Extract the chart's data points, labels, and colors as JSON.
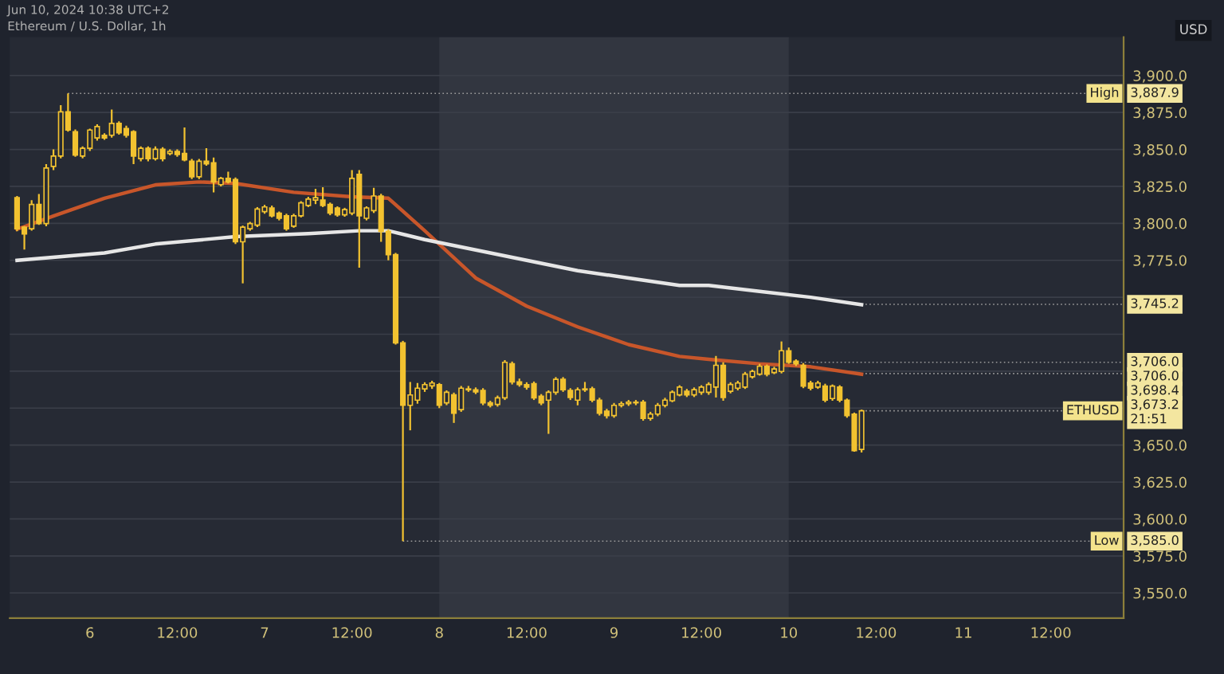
{
  "chart_data": {
    "type": "candlestick",
    "title": "Ethereum / U.S. Dollar, 1h",
    "ylabel": "USD",
    "color": "#f2c230",
    "x": [
      "2024-06-05T14:00",
      "2024-06-05T15:00",
      "2024-06-05T16:00",
      "2024-06-05T17:00",
      "2024-06-05T18:00",
      "2024-06-05T19:00",
      "2024-06-05T20:00",
      "2024-06-05T21:00",
      "2024-06-05T22:00",
      "2024-06-05T23:00",
      "2024-06-06T00:00",
      "2024-06-06T01:00",
      "2024-06-06T02:00",
      "2024-06-06T03:00",
      "2024-06-06T04:00",
      "2024-06-06T05:00",
      "2024-06-06T06:00",
      "2024-06-06T07:00",
      "2024-06-06T08:00",
      "2024-06-06T09:00",
      "2024-06-06T10:00",
      "2024-06-06T11:00",
      "2024-06-06T12:00",
      "2024-06-06T13:00",
      "2024-06-06T14:00",
      "2024-06-06T15:00",
      "2024-06-06T16:00",
      "2024-06-06T17:00",
      "2024-06-06T18:00",
      "2024-06-06T19:00",
      "2024-06-06T20:00",
      "2024-06-06T21:00",
      "2024-06-06T22:00",
      "2024-06-06T23:00",
      "2024-06-07T00:00",
      "2024-06-07T01:00",
      "2024-06-07T02:00",
      "2024-06-07T03:00",
      "2024-06-07T04:00",
      "2024-06-07T05:00",
      "2024-06-07T06:00",
      "2024-06-07T07:00",
      "2024-06-07T08:00",
      "2024-06-07T09:00",
      "2024-06-07T10:00",
      "2024-06-07T11:00",
      "2024-06-07T12:00",
      "2024-06-07T13:00",
      "2024-06-07T14:00",
      "2024-06-07T15:00",
      "2024-06-07T16:00",
      "2024-06-07T17:00",
      "2024-06-07T18:00",
      "2024-06-07T19:00",
      "2024-06-07T20:00",
      "2024-06-07T21:00",
      "2024-06-07T22:00",
      "2024-06-07T23:00",
      "2024-06-08T00:00",
      "2024-06-08T01:00",
      "2024-06-08T02:00",
      "2024-06-08T03:00",
      "2024-06-08T04:00",
      "2024-06-08T05:00",
      "2024-06-08T06:00",
      "2024-06-08T07:00",
      "2024-06-08T08:00",
      "2024-06-08T09:00",
      "2024-06-08T10:00",
      "2024-06-08T11:00",
      "2024-06-08T12:00",
      "2024-06-08T13:00",
      "2024-06-08T14:00",
      "2024-06-08T15:00",
      "2024-06-08T16:00",
      "2024-06-08T17:00",
      "2024-06-08T18:00",
      "2024-06-08T19:00",
      "2024-06-08T20:00",
      "2024-06-08T21:00",
      "2024-06-08T22:00",
      "2024-06-08T23:00",
      "2024-06-09T00:00",
      "2024-06-09T01:00",
      "2024-06-09T02:00",
      "2024-06-09T03:00",
      "2024-06-09T04:00",
      "2024-06-09T05:00",
      "2024-06-09T06:00",
      "2024-06-09T07:00",
      "2024-06-09T08:00",
      "2024-06-09T09:00",
      "2024-06-09T10:00",
      "2024-06-09T11:00",
      "2024-06-09T12:00",
      "2024-06-09T13:00",
      "2024-06-09T14:00",
      "2024-06-09T15:00",
      "2024-06-09T16:00",
      "2024-06-09T17:00",
      "2024-06-09T18:00",
      "2024-06-09T19:00",
      "2024-06-09T20:00",
      "2024-06-09T21:00",
      "2024-06-09T22:00",
      "2024-06-09T23:00",
      "2024-06-10T00:00",
      "2024-06-10T01:00",
      "2024-06-10T02:00",
      "2024-06-10T03:00",
      "2024-06-10T04:00",
      "2024-06-10T05:00",
      "2024-06-10T06:00",
      "2024-06-10T07:00",
      "2024-06-10T08:00",
      "2024-06-10T09:00",
      "2024-06-10T10:00"
    ],
    "ohlc": [
      [
        3817.4,
        3818.5,
        3794.6,
        3796.3
      ],
      [
        3797.4,
        3798.1,
        3782.3,
        3792.8
      ],
      [
        3796.3,
        3815.7,
        3795.0,
        3812.8
      ],
      [
        3812.8,
        3819.9,
        3799.0,
        3799.8
      ],
      [
        3799.8,
        3840.0,
        3798.0,
        3837.4
      ],
      [
        3838.5,
        3850.0,
        3836.0,
        3845.5
      ],
      [
        3845.5,
        3880.0,
        3844.0,
        3875.4
      ],
      [
        3875.4,
        3887.9,
        3862.0,
        3863.1
      ],
      [
        3862.0,
        3863.5,
        3845.0,
        3846.2
      ],
      [
        3845.5,
        3852.0,
        3844.0,
        3850.8
      ],
      [
        3850.8,
        3864.0,
        3849.0,
        3863.1
      ],
      [
        3857.8,
        3867.0,
        3856.0,
        3865.5
      ],
      [
        3859.6,
        3861.0,
        3856.5,
        3857.8
      ],
      [
        3859.6,
        3877.0,
        3858.0,
        3867.6
      ],
      [
        3867.6,
        3869.0,
        3860.0,
        3861.3
      ],
      [
        3864.1,
        3866.0,
        3858.0,
        3859.6
      ],
      [
        3862.0,
        3863.0,
        3840.0,
        3845.5
      ],
      [
        3843.8,
        3852.0,
        3842.0,
        3850.8
      ],
      [
        3850.8,
        3852.0,
        3842.0,
        3843.8
      ],
      [
        3843.8,
        3852.0,
        3842.5,
        3850.1
      ],
      [
        3850.1,
        3851.5,
        3842.0,
        3843.8
      ],
      [
        3847.3,
        3850.0,
        3846.0,
        3848.7
      ],
      [
        3848.7,
        3850.0,
        3845.0,
        3846.6
      ],
      [
        3847.3,
        3864.8,
        3842.0,
        3843.0
      ],
      [
        3842.0,
        3843.5,
        3830.0,
        3831.5
      ],
      [
        3831.5,
        3843.5,
        3830.0,
        3842.0
      ],
      [
        3842.0,
        3850.8,
        3839.0,
        3840.2
      ],
      [
        3840.9,
        3844.5,
        3820.9,
        3828.0
      ],
      [
        3826.2,
        3831.5,
        3825.0,
        3830.4
      ],
      [
        3830.4,
        3835.0,
        3827.0,
        3828.0
      ],
      [
        3829.7,
        3831.0,
        3786.0,
        3787.5
      ],
      [
        3787.5,
        3798.5,
        3759.4,
        3797.4
      ],
      [
        3796.3,
        3801.0,
        3795.0,
        3799.8
      ],
      [
        3798.8,
        3811.0,
        3797.5,
        3809.7
      ],
      [
        3807.9,
        3812.5,
        3806.5,
        3811.1
      ],
      [
        3810.4,
        3812.0,
        3804.0,
        3805.1
      ],
      [
        3806.9,
        3808.0,
        3802.0,
        3803.4
      ],
      [
        3805.1,
        3806.5,
        3795.0,
        3796.3
      ],
      [
        3798.1,
        3806.5,
        3797.0,
        3805.1
      ],
      [
        3805.1,
        3815.0,
        3804.0,
        3813.9
      ],
      [
        3812.1,
        3818.0,
        3811.0,
        3816.4
      ],
      [
        3815.7,
        3823.4,
        3813.0,
        3817.4
      ],
      [
        3815.7,
        3824.4,
        3811.0,
        3812.1
      ],
      [
        3812.8,
        3814.0,
        3805.5,
        3806.9
      ],
      [
        3810.4,
        3811.5,
        3804.5,
        3805.8
      ],
      [
        3805.8,
        3810.5,
        3804.5,
        3809.3
      ],
      [
        3806.9,
        3836.0,
        3805.5,
        3830.4
      ],
      [
        3833.2,
        3836.0,
        3770.0,
        3805.1
      ],
      [
        3803.4,
        3811.5,
        3802.0,
        3810.4
      ],
      [
        3808.6,
        3824.0,
        3807.0,
        3818.5
      ],
      [
        3818.5,
        3820.0,
        3787.5,
        3794.6
      ],
      [
        3794.6,
        3796.0,
        3775.0,
        3778.8
      ],
      [
        3778.8,
        3780.0,
        3718.0,
        3719.1
      ],
      [
        3719.1,
        3720.5,
        3585.0,
        3676.9
      ],
      [
        3676.9,
        3692.7,
        3660.0,
        3683.9
      ],
      [
        3680.4,
        3692.0,
        3678.0,
        3688.5
      ],
      [
        3688.0,
        3692.5,
        3686.0,
        3690.9
      ],
      [
        3690.0,
        3693.5,
        3688.0,
        3692.0
      ],
      [
        3690.9,
        3692.0,
        3675.0,
        3676.9
      ],
      [
        3678.6,
        3687.0,
        3677.0,
        3685.7
      ],
      [
        3684.0,
        3685.5,
        3665.0,
        3671.6
      ],
      [
        3674.0,
        3690.0,
        3672.5,
        3688.5
      ],
      [
        3688.0,
        3690.0,
        3686.0,
        3687.4
      ],
      [
        3687.4,
        3689.0,
        3684.5,
        3686.0
      ],
      [
        3687.0,
        3688.5,
        3677.0,
        3678.6
      ],
      [
        3678.6,
        3680.0,
        3675.5,
        3677.0
      ],
      [
        3677.5,
        3683.5,
        3676.0,
        3682.0
      ],
      [
        3682.0,
        3707.5,
        3680.5,
        3706.0
      ],
      [
        3705.0,
        3706.5,
        3691.0,
        3692.7
      ],
      [
        3692.7,
        3695.0,
        3689.5,
        3690.9
      ],
      [
        3690.9,
        3692.5,
        3687.5,
        3689.2
      ],
      [
        3691.5,
        3693.0,
        3680.5,
        3682.0
      ],
      [
        3683.0,
        3684.5,
        3677.0,
        3678.6
      ],
      [
        3680.4,
        3687.0,
        3657.6,
        3685.7
      ],
      [
        3685.7,
        3696.0,
        3684.0,
        3694.5
      ],
      [
        3694.5,
        3696.0,
        3686.0,
        3687.4
      ],
      [
        3687.0,
        3688.5,
        3680.5,
        3682.2
      ],
      [
        3680.4,
        3689.0,
        3676.9,
        3687.4
      ],
      [
        3687.4,
        3692.7,
        3686.0,
        3688.0
      ],
      [
        3688.0,
        3689.5,
        3679.0,
        3680.4
      ],
      [
        3680.4,
        3682.0,
        3670.0,
        3671.6
      ],
      [
        3673.0,
        3674.5,
        3668.0,
        3669.9
      ],
      [
        3670.0,
        3678.5,
        3668.5,
        3676.9
      ],
      [
        3676.9,
        3679.5,
        3675.5,
        3678.0
      ],
      [
        3678.0,
        3680.5,
        3676.5,
        3679.0
      ],
      [
        3679.0,
        3680.5,
        3677.0,
        3678.6
      ],
      [
        3679.0,
        3680.5,
        3666.5,
        3668.1
      ],
      [
        3668.1,
        3672.5,
        3666.5,
        3671.0
      ],
      [
        3671.0,
        3678.5,
        3669.5,
        3676.9
      ],
      [
        3676.9,
        3682.0,
        3675.5,
        3680.4
      ],
      [
        3680.0,
        3687.0,
        3679.0,
        3685.7
      ],
      [
        3684.0,
        3690.5,
        3683.0,
        3689.2
      ],
      [
        3686.4,
        3688.0,
        3682.5,
        3684.0
      ],
      [
        3684.0,
        3689.0,
        3682.5,
        3687.5
      ],
      [
        3685.7,
        3690.5,
        3684.0,
        3689.2
      ],
      [
        3685.7,
        3692.5,
        3684.0,
        3691.0
      ],
      [
        3689.2,
        3710.3,
        3682.2,
        3704.0
      ],
      [
        3704.0,
        3706.0,
        3680.0,
        3682.2
      ],
      [
        3686.4,
        3692.5,
        3685.0,
        3691.0
      ],
      [
        3688.5,
        3693.5,
        3687.0,
        3692.0
      ],
      [
        3689.2,
        3699.5,
        3688.0,
        3698.0
      ],
      [
        3696.2,
        3701.0,
        3695.0,
        3699.8
      ],
      [
        3698.0,
        3705.0,
        3697.0,
        3703.3
      ],
      [
        3703.3,
        3704.5,
        3696.5,
        3698.0
      ],
      [
        3699.1,
        3703.0,
        3698.0,
        3701.5
      ],
      [
        3699.8,
        3720.1,
        3698.5,
        3713.8
      ],
      [
        3713.8,
        3716.0,
        3705.0,
        3706.0
      ],
      [
        3706.8,
        3708.0,
        3703.5,
        3705.0
      ],
      [
        3704.0,
        3705.5,
        3688.5,
        3689.9
      ],
      [
        3692.0,
        3693.5,
        3687.0,
        3688.5
      ],
      [
        3689.2,
        3693.5,
        3688.0,
        3692.0
      ],
      [
        3689.9,
        3691.5,
        3679.0,
        3680.4
      ],
      [
        3681.5,
        3691.0,
        3680.0,
        3689.9
      ],
      [
        3689.2,
        3690.5,
        3679.0,
        3680.4
      ],
      [
        3680.4,
        3681.5,
        3668.5,
        3669.9
      ],
      [
        3670.9,
        3672.0,
        3645.5,
        3646.3
      ],
      [
        3647.1,
        3674.0,
        3645.0,
        3673.2
      ]
    ],
    "series": [
      {
        "type": "line",
        "color": "#c8562a",
        "x": [
          "2024-06-05T14:00",
          "2024-06-05T19:00",
          "2024-06-06T02:00",
          "2024-06-06T09:00",
          "2024-06-06T15:00",
          "2024-06-06T20:00",
          "2024-06-07T04:00",
          "2024-06-07T12:00",
          "2024-06-07T17:00",
          "2024-06-07T22:00",
          "2024-06-08T05:00",
          "2024-06-08T12:00",
          "2024-06-08T19:00",
          "2024-06-09T02:00",
          "2024-06-09T09:00",
          "2024-06-09T13:00",
          "2024-06-09T20:00",
          "2024-06-10T03:00",
          "2024-06-10T10:00"
        ],
        "values": [
          3796,
          3805,
          3817,
          3826,
          3828,
          3827,
          3821,
          3818,
          3817,
          3795,
          3763,
          3744,
          3730,
          3718,
          3710,
          3708,
          3705,
          3703,
          3698
        ]
      },
      {
        "type": "line",
        "color": "#e6e6e6",
        "x": [
          "2024-06-05T14:00",
          "2024-06-06T02:00",
          "2024-06-06T09:00",
          "2024-06-06T20:00",
          "2024-06-07T06:00",
          "2024-06-07T13:00",
          "2024-06-07T17:00",
          "2024-06-07T22:00",
          "2024-06-08T05:00",
          "2024-06-08T12:00",
          "2024-06-08T19:00",
          "2024-06-09T02:00",
          "2024-06-09T09:00",
          "2024-06-09T13:00",
          "2024-06-09T20:00",
          "2024-06-10T03:00",
          "2024-06-10T10:00"
        ],
        "values": [
          3775,
          3780,
          3786,
          3791,
          3793,
          3795,
          3795,
          3789,
          3782,
          3775,
          3768,
          3763,
          3758,
          3758,
          3754,
          3750,
          3745
        ]
      }
    ],
    "bands": [
      {
        "axis": "x",
        "from": "2024-06-08T00:00",
        "to": "2024-06-10T00:00",
        "color": "#323640"
      }
    ],
    "xlim": [
      "2024-06-05T13:00",
      "2024-06-11T22:00"
    ],
    "xticks": [
      {
        "value": "2024-06-06T00:00",
        "label": "6"
      },
      {
        "value": "2024-06-06T12:00",
        "label": "12:00"
      },
      {
        "value": "2024-06-07T00:00",
        "label": "7"
      },
      {
        "value": "2024-06-07T12:00",
        "label": "12:00"
      },
      {
        "value": "2024-06-08T00:00",
        "label": "8"
      },
      {
        "value": "2024-06-08T12:00",
        "label": "12:00"
      },
      {
        "value": "2024-06-09T00:00",
        "label": "9"
      },
      {
        "value": "2024-06-09T12:00",
        "label": "12:00"
      },
      {
        "value": "2024-06-10T00:00",
        "label": "10"
      },
      {
        "value": "2024-06-10T12:00",
        "label": "12:00"
      },
      {
        "value": "2024-06-11T00:00",
        "label": "11"
      },
      {
        "value": "2024-06-11T12:00",
        "label": "12:00"
      }
    ],
    "ylim": [
      3533,
      3926
    ],
    "yticks": [
      {
        "value": 3550,
        "label": "3,550.0"
      },
      {
        "value": 3575,
        "label": "3,575.0"
      },
      {
        "value": 3600,
        "label": "3,600.0"
      },
      {
        "value": 3625,
        "label": "3,625.0"
      },
      {
        "value": 3650,
        "label": "3,650.0"
      },
      {
        "value": 3675,
        "label": null
      },
      {
        "value": 3700,
        "label": null
      },
      {
        "value": 3725,
        "label": null
      },
      {
        "value": 3750,
        "label": null
      },
      {
        "value": 3775,
        "label": "3,775.0"
      },
      {
        "value": 3800,
        "label": "3,800.0"
      },
      {
        "value": 3825,
        "label": "3,825.0"
      },
      {
        "value": 3850,
        "label": "3,850.0"
      },
      {
        "value": 3875,
        "label": "3,875.0"
      },
      {
        "value": 3900,
        "label": "3,900.0"
      }
    ],
    "grid": "y",
    "annotations": [
      "Jun 10, 2024 10:38 UTC+2",
      {
        "text": "High",
        "x": "2024-06-05T21:00",
        "y": 3887.9
      },
      {
        "text": "3,887.9",
        "x": "2024-06-05T21:00",
        "y": 3887.9
      },
      {
        "text": "3,745.2",
        "x": "2024-06-10T10:00",
        "y": 3745.2
      },
      {
        "text": "3,706.0",
        "y": 3706.0
      },
      {
        "text": "3,706.0",
        "x": "2024-06-10T00:00",
        "y": 3706.0
      },
      {
        "text": "3,698.4",
        "x": "2024-06-10T10:00",
        "y": 3698.4
      },
      {
        "text": "ETHUSD",
        "x": "2024-06-10T10:00",
        "y": 3673.2
      },
      {
        "text": "3,673.2\n21:51",
        "x": "2024-06-10T10:00",
        "y": 3673.2
      },
      {
        "text": "Low",
        "x": "2024-06-07T19:00",
        "y": 3585.0
      },
      {
        "text": "3,585.0",
        "x": "2024-06-07T19:00",
        "y": 3585.0
      }
    ]
  }
}
